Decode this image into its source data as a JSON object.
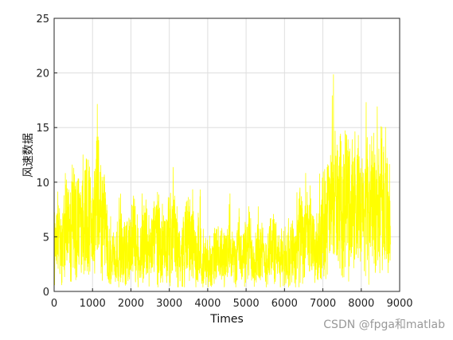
{
  "chart_data": {
    "type": "line",
    "xlabel": "Times",
    "ylabel": "风速数据",
    "xlim": [
      0,
      9000
    ],
    "ylim": [
      0,
      25
    ],
    "xticks": [
      0,
      1000,
      2000,
      3000,
      4000,
      5000,
      6000,
      7000,
      8000,
      9000
    ],
    "yticks": [
      0,
      5,
      10,
      15,
      20,
      25
    ],
    "grid": true,
    "series": [
      {
        "color": "#ffff00",
        "x": [
          0,
          100,
          200,
          300,
          400,
          500,
          600,
          700,
          800,
          900,
          1000,
          1100,
          1200,
          1300,
          1400,
          1500,
          1600,
          1700,
          1800,
          1900,
          2000,
          2100,
          2200,
          2300,
          2400,
          2500,
          2600,
          2700,
          2800,
          2900,
          3000,
          3100,
          3200,
          3300,
          3400,
          3500,
          3600,
          3700,
          3800,
          3900,
          4000,
          4100,
          4200,
          4300,
          4400,
          4500,
          4600,
          4700,
          4800,
          4900,
          5000,
          5100,
          5200,
          5300,
          5400,
          5500,
          5600,
          5700,
          5800,
          5900,
          6000,
          6100,
          6200,
          6300,
          6400,
          6500,
          6600,
          6700,
          6800,
          6900,
          7000,
          7100,
          7200,
          7300,
          7400,
          7500,
          7600,
          7700,
          7800,
          7900,
          8000,
          8100,
          8200,
          8300,
          8400,
          8500,
          8600,
          8700,
          8760
        ],
        "y": [
          4.5,
          5.5,
          4.0,
          6.0,
          5.2,
          7.0,
          6.0,
          5.5,
          6.8,
          7.5,
          5.0,
          8.0,
          7.0,
          6.5,
          4.0,
          3.5,
          3.0,
          4.5,
          3.2,
          3.8,
          4.0,
          5.5,
          3.0,
          4.2,
          5.0,
          3.5,
          4.8,
          5.5,
          4.0,
          3.5,
          5.0,
          5.5,
          4.0,
          3.2,
          4.5,
          5.0,
          4.2,
          3.0,
          4.0,
          2.5,
          2.8,
          2.0,
          3.5,
          2.8,
          3.5,
          3.0,
          4.0,
          2.5,
          4.2,
          3.0,
          3.5,
          4.5,
          3.0,
          3.8,
          3.5,
          2.5,
          3.8,
          4.5,
          3.0,
          2.8,
          3.5,
          3.0,
          4.0,
          3.5,
          5.5,
          4.0,
          5.0,
          4.5,
          3.5,
          4.0,
          6.0,
          7.5,
          7.0,
          8.5,
          8.0,
          7.5,
          9.0,
          8.0,
          8.5,
          7.5,
          6.5,
          8.0,
          7.5,
          8.5,
          7.0,
          9.0,
          8.0,
          7.5,
          7.0
        ]
      }
    ]
  },
  "watermark": "CSDN @fpga和matlab"
}
